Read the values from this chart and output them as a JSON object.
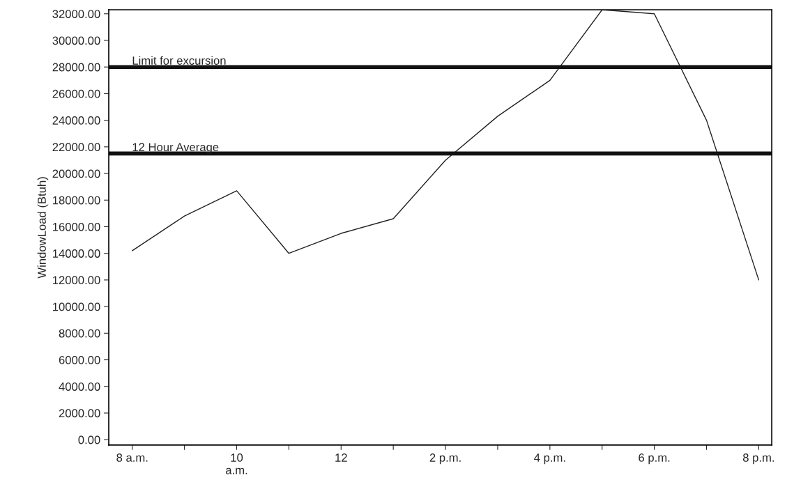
{
  "chart_data": {
    "type": "line",
    "ylabel": "WindowLoad (Btuh)",
    "categories": [
      "8 a.m.",
      null,
      "10\na.m.",
      null,
      "12",
      null,
      "2 p.m.",
      null,
      "4 p.m.",
      null,
      "6 p.m.",
      null,
      "8 p.m."
    ],
    "series": [
      {
        "color": "#222222",
        "values": [
          14200,
          16800,
          18700,
          14000,
          15500,
          16600,
          21000,
          24300,
          27000,
          32300,
          32000,
          24000,
          12000
        ]
      }
    ],
    "ylim": [
      -400,
      32300
    ],
    "yticks": [
      {
        "value": 0,
        "label": "0.00"
      },
      {
        "value": 2000,
        "label": "2000.00"
      },
      {
        "value": 4000,
        "label": "4000.00"
      },
      {
        "value": 6000,
        "label": "6000.00"
      },
      {
        "value": 8000,
        "label": "8000.00"
      },
      {
        "value": 10000,
        "label": "10000.00"
      },
      {
        "value": 12000,
        "label": "12000.00"
      },
      {
        "value": 14000,
        "label": "14000.00"
      },
      {
        "value": 16000,
        "label": "16000.00"
      },
      {
        "value": 18000,
        "label": "18000.00"
      },
      {
        "value": 20000,
        "label": "20000.00"
      },
      {
        "value": 22000,
        "label": "22000.00"
      },
      {
        "value": 24000,
        "label": "24000.00"
      },
      {
        "value": 26000,
        "label": "26000.00"
      },
      {
        "value": 28000,
        "label": "28000.00"
      },
      {
        "value": 30000,
        "label": "30000.00"
      },
      {
        "value": 32000,
        "label": "32000.00"
      }
    ],
    "ref_lines": [
      {
        "axis": "y",
        "value": 28000,
        "label": "Limit for excursion",
        "color": "#111111"
      },
      {
        "axis": "y",
        "value": 21500,
        "label": "12 Hour Average",
        "color": "#111111"
      }
    ],
    "grid": false,
    "legend": false,
    "marker": "none",
    "line_style": "solid"
  }
}
